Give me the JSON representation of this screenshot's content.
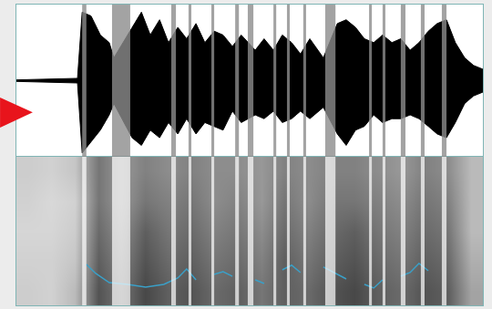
{
  "chart_data": [
    {
      "type": "waveform",
      "x": [
        0,
        8.2,
        13.1,
        14.1,
        16.0,
        18.0,
        19.9,
        20.9,
        24.8,
        26.8,
        28.7,
        30.7,
        32.6,
        34.6,
        36.5,
        38.5,
        40.4,
        42.4,
        44.3,
        46.3,
        48.2,
        51.2,
        53.1,
        55.1,
        57.0,
        59.0,
        60.9,
        62.9,
        65.8,
        68.8,
        70.7,
        72.7,
        74.6,
        76.6,
        78.5,
        80.5,
        82.4,
        84.4,
        86.3,
        88.3,
        90.2,
        92.2,
        94.1,
        96.1,
        98.0,
        100
      ],
      "values": [
        0.01,
        0.02,
        0.03,
        0.9,
        0.85,
        0.6,
        0.5,
        0.3,
        0.7,
        0.9,
        0.6,
        0.8,
        0.5,
        0.7,
        0.55,
        0.75,
        0.5,
        0.65,
        0.6,
        0.45,
        0.6,
        0.4,
        0.55,
        0.4,
        0.6,
        0.5,
        0.35,
        0.55,
        0.3,
        0.75,
        0.8,
        0.7,
        0.55,
        0.5,
        0.6,
        0.5,
        0.55,
        0.4,
        0.5,
        0.65,
        0.75,
        0.8,
        0.5,
        0.3,
        0.2,
        0.15
      ],
      "lower": [
        -0.01,
        -0.02,
        -0.03,
        -0.95,
        -0.8,
        -0.65,
        -0.45,
        -0.3,
        -0.75,
        -0.85,
        -0.65,
        -0.75,
        -0.55,
        -0.7,
        -0.5,
        -0.7,
        -0.55,
        -0.6,
        -0.65,
        -0.4,
        -0.55,
        -0.45,
        -0.5,
        -0.4,
        -0.55,
        -0.5,
        -0.4,
        -0.5,
        -0.35,
        -0.7,
        -0.85,
        -0.65,
        -0.6,
        -0.45,
        -0.55,
        -0.5,
        -0.5,
        -0.45,
        -0.5,
        -0.6,
        -0.7,
        -0.75,
        -0.55,
        -0.3,
        -0.2,
        -0.15
      ],
      "color": "#000000",
      "boundaries": [
        [
          14.1,
          15.0
        ],
        [
          20.5,
          24.4
        ],
        [
          33.2,
          34.2
        ],
        [
          36.9,
          37.5
        ],
        [
          41.8,
          42.4
        ],
        [
          46.9,
          47.7
        ],
        [
          49.6,
          50.8
        ],
        [
          55.1,
          55.7
        ],
        [
          58.0,
          58.6
        ],
        [
          61.5,
          62.1
        ],
        [
          66.2,
          68.4
        ],
        [
          75.6,
          76.2
        ],
        [
          78.5,
          79.1
        ],
        [
          82.4,
          83.4
        ],
        [
          86.7,
          87.5
        ],
        [
          91.2,
          92.2
        ]
      ],
      "xlim": [
        0,
        100
      ],
      "ylim": [
        -1,
        1
      ],
      "tick_labels": false,
      "grid": false
    },
    {
      "type": "heatmap",
      "x": [
        2.5,
        7.5,
        12.5,
        17.5,
        22.5,
        27.5,
        32.5,
        37.5,
        42.5,
        47.5,
        52.5,
        57.5,
        62.5,
        67.5,
        72.5,
        77.5,
        82.5,
        87.5,
        92.5,
        97.5
      ],
      "y": [
        10,
        30,
        50,
        70,
        90
      ],
      "cells": [
        [
          0.22,
          0.2,
          0.3,
          0.75,
          0.6,
          0.8,
          0.7,
          0.75,
          0.65,
          0.7,
          0.6,
          0.7,
          0.65,
          0.75,
          0.8,
          0.7,
          0.65,
          0.75,
          0.7,
          0.4
        ],
        [
          0.2,
          0.2,
          0.25,
          0.7,
          0.55,
          0.75,
          0.65,
          0.7,
          0.6,
          0.65,
          0.55,
          0.7,
          0.6,
          0.7,
          0.75,
          0.65,
          0.6,
          0.7,
          0.65,
          0.35
        ],
        [
          0.18,
          0.18,
          0.22,
          0.65,
          0.5,
          0.7,
          0.6,
          0.65,
          0.55,
          0.6,
          0.5,
          0.65,
          0.55,
          0.65,
          0.7,
          0.6,
          0.55,
          0.65,
          0.6,
          0.3
        ],
        [
          0.2,
          0.17,
          0.2,
          0.6,
          0.45,
          0.6,
          0.55,
          0.6,
          0.5,
          0.55,
          0.45,
          0.6,
          0.5,
          0.6,
          0.6,
          0.55,
          0.5,
          0.6,
          0.55,
          0.3
        ],
        [
          0.22,
          0.2,
          0.25,
          0.6,
          0.45,
          0.55,
          0.5,
          0.55,
          0.5,
          0.5,
          0.45,
          0.55,
          0.5,
          0.55,
          0.55,
          0.5,
          0.45,
          0.55,
          0.5,
          0.3
        ]
      ],
      "zlim": [
        0,
        1
      ],
      "boundaries": [
        [
          14.1,
          15.0
        ],
        [
          20.5,
          24.4
        ],
        [
          33.2,
          34.2
        ],
        [
          36.9,
          37.5
        ],
        [
          41.8,
          42.4
        ],
        [
          46.9,
          47.7
        ],
        [
          49.6,
          50.8
        ],
        [
          55.1,
          55.7
        ],
        [
          58.0,
          58.6
        ],
        [
          61.5,
          62.1
        ],
        [
          66.2,
          68.4
        ],
        [
          75.6,
          76.2
        ],
        [
          78.5,
          79.1
        ],
        [
          82.4,
          83.4
        ],
        [
          86.7,
          87.5
        ],
        [
          91.2,
          92.2
        ]
      ],
      "series": [
        {
          "type": "line",
          "color": "#3aa0c8",
          "x": [
            15.0,
            17.0,
            19.9,
            23.8,
            27.7,
            31.6,
            34.6,
            36.5,
            38.5,
            40.4,
            42.4,
            44.3,
            46.3,
            48.2,
            51.2,
            53.1,
            55.1,
            57.0,
            59.0,
            60.9,
            62.9,
            65.8,
            68.8,
            70.7,
            72.7,
            74.6,
            76.6,
            78.5,
            80.5,
            82.4,
            84.4,
            86.3,
            88.3,
            90.2
          ],
          "values": [
            27.6,
            21.5,
            15.3,
            14.1,
            12.3,
            14.1,
            18.4,
            24.5,
            17.2,
            null,
            20.9,
            22.7,
            19.6,
            null,
            17.2,
            14.7,
            null,
            23.9,
            27.0,
            22.1,
            null,
            25.8,
            20.9,
            17.8,
            null,
            14.1,
            11.7,
            17.2,
            null,
            19.6,
            22.1,
            28.2,
            23.3,
            null
          ]
        }
      ],
      "xlim": [
        0,
        100
      ],
      "ylim": [
        0,
        100
      ],
      "tick_labels": false,
      "grid": false
    }
  ]
}
